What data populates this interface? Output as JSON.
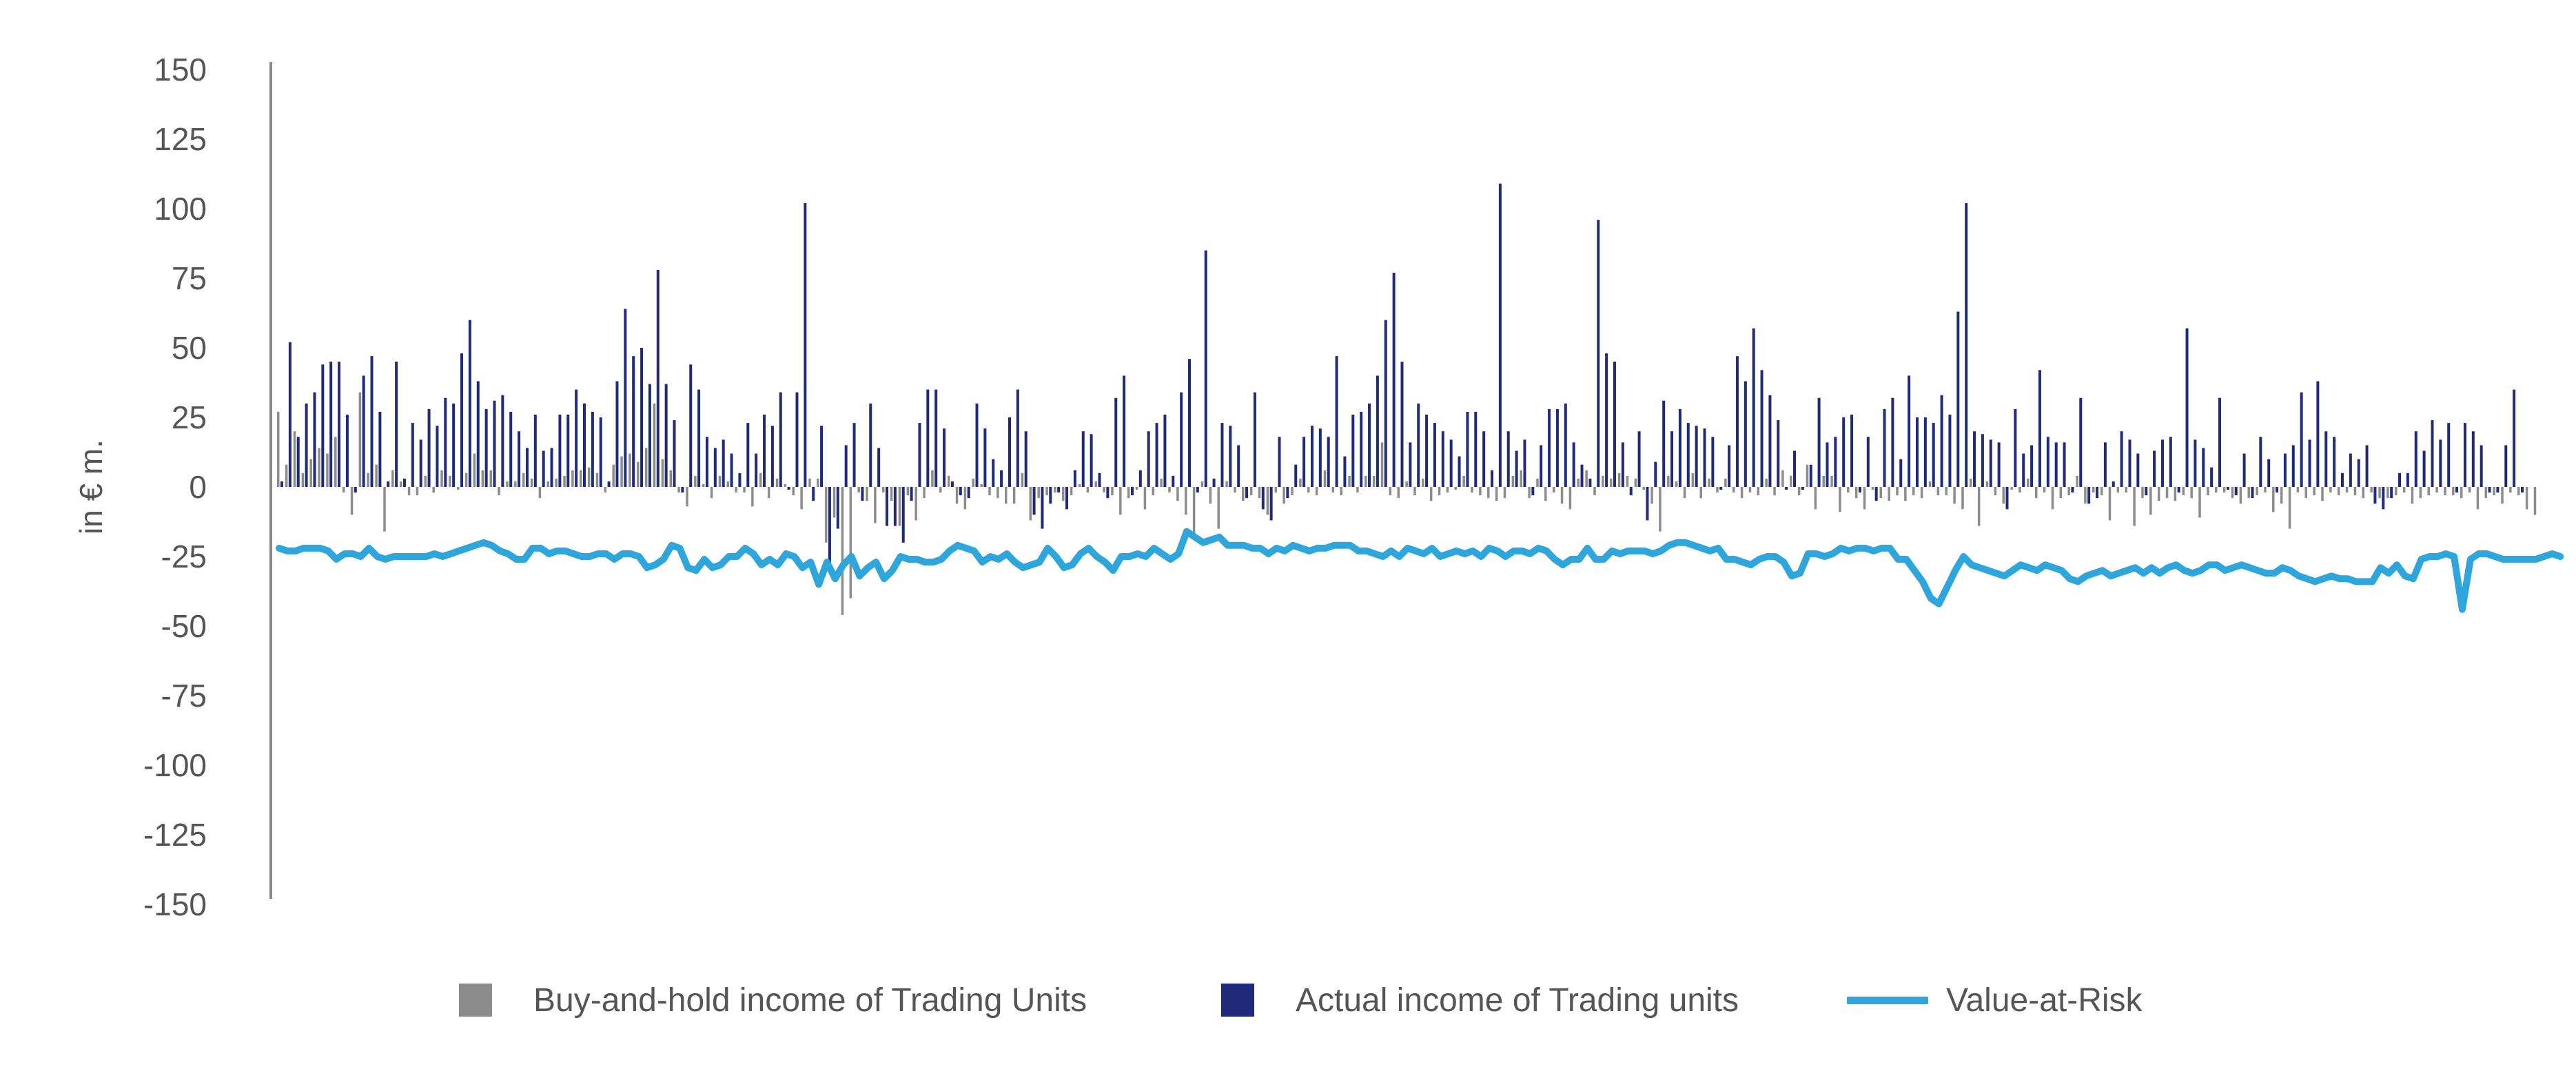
{
  "colors": {
    "buy_and_hold": "#8c8c8c",
    "actual": "#1f2a7a",
    "var_line": "#2ea6dc",
    "axis": "#8a8a8a",
    "text": "#555555"
  },
  "legend": {
    "buy_and_hold_label": "Buy-and-hold income of Trading Units",
    "actual_label": "Actual income of Trading units",
    "var_label": "Value-at-Risk"
  },
  "chart_data": {
    "type": "bar",
    "title": "",
    "xlabel": "",
    "ylabel": "in € m.",
    "ylim": [
      -150,
      150
    ],
    "y_ticks": [
      "150",
      "125",
      "100",
      "75",
      "50",
      "25",
      "0",
      "-25",
      "-50",
      "-75",
      "-100",
      "-125",
      "-150"
    ],
    "x_axis_labels": "none",
    "grid": false,
    "legend_position": "bottom",
    "series": [
      {
        "name": "Actual income of Trading units",
        "kind": "bar",
        "values": [
          2,
          52,
          18,
          30,
          34,
          44,
          45,
          45,
          26,
          -2,
          40,
          47,
          27,
          2,
          45,
          3,
          23,
          17,
          28,
          22,
          32,
          30,
          48,
          60,
          38,
          28,
          31,
          33,
          27,
          20,
          14,
          26,
          13,
          14,
          26,
          26,
          35,
          30,
          27,
          25,
          2,
          38,
          64,
          47,
          50,
          37,
          78,
          37,
          24,
          -2,
          44,
          35,
          18,
          14,
          17,
          12,
          5,
          23,
          12,
          26,
          22,
          34,
          -1,
          34,
          102,
          -5,
          22,
          -30,
          -15,
          15,
          23,
          -5,
          30,
          14,
          -14,
          -14,
          -20,
          -5,
          23,
          35,
          35,
          21,
          2,
          -3,
          -4,
          30,
          21,
          10,
          6,
          25,
          35,
          20,
          -10,
          -15,
          -6,
          -2,
          -8,
          6,
          20,
          19,
          5,
          -4,
          32,
          40,
          -3,
          6,
          20,
          23,
          26,
          4,
          34,
          46,
          -2,
          85,
          3,
          23,
          22,
          15,
          -4,
          34,
          -8,
          -12,
          18,
          -4,
          8,
          18,
          22,
          21,
          18,
          47,
          11,
          26,
          27,
          30,
          40,
          60,
          77,
          45,
          16,
          30,
          26,
          23,
          20,
          17,
          11,
          27,
          27,
          20,
          6,
          109,
          20,
          13,
          17,
          -3,
          15,
          28,
          28,
          30,
          16,
          8,
          3,
          96,
          48,
          45,
          16,
          -3,
          20,
          -12,
          9,
          31,
          20,
          28,
          23,
          22,
          21,
          18,
          -1,
          15,
          47,
          38,
          57,
          42,
          33,
          24,
          -1,
          13,
          -1,
          8,
          32,
          16,
          18,
          25,
          26,
          -2,
          18,
          -5,
          28,
          32,
          10,
          40,
          25,
          25,
          23,
          33,
          26,
          63,
          102,
          20,
          19,
          17,
          16,
          -8,
          28,
          12,
          15,
          42,
          18,
          16,
          16,
          -2,
          32,
          -6,
          -4,
          16,
          2,
          20,
          17,
          12,
          -3,
          13,
          17,
          18,
          -2,
          57,
          17,
          14,
          7,
          32,
          -1,
          -3,
          12,
          -4,
          18,
          10,
          -2,
          12,
          15,
          34,
          17,
          38,
          20,
          18,
          5,
          12,
          10,
          15,
          -6,
          -8,
          -4,
          5,
          5,
          20,
          13,
          24,
          17,
          23,
          -2,
          23,
          20,
          15,
          -2,
          -2,
          15,
          35,
          -2
        ],
        "color": "#1f2a7a"
      },
      {
        "name": "Buy-and-hold income of Trading Units",
        "kind": "bar",
        "values": [
          27,
          8,
          20,
          5,
          10,
          14,
          12,
          18,
          -2,
          -10,
          34,
          5,
          8,
          -16,
          6,
          2,
          -3,
          -3,
          4,
          -2,
          6,
          4,
          -1,
          5,
          12,
          6,
          6,
          -3,
          2,
          2,
          5,
          3,
          -4,
          2,
          3,
          4,
          6,
          6,
          7,
          5,
          -2,
          8,
          11,
          12,
          9,
          14,
          30,
          10,
          6,
          -2,
          -7,
          4,
          1,
          -4,
          4,
          2,
          -2,
          -2,
          -7,
          5,
          -4,
          3,
          1,
          -3,
          -8,
          3,
          3,
          -20,
          -11,
          -46,
          -40,
          -2,
          -5,
          -13,
          -2,
          -5,
          -14,
          -3,
          -12,
          -4,
          6,
          -2,
          4,
          -6,
          -8,
          3,
          1,
          -3,
          -4,
          -6,
          -6,
          5,
          -12,
          -4,
          -3,
          -2,
          -5,
          -3,
          1,
          -2,
          2,
          -2,
          -3,
          -10,
          -4,
          -1,
          -8,
          -3,
          3,
          -2,
          -5,
          -10,
          -19,
          2,
          -6,
          -15,
          2,
          -2,
          -5,
          -3,
          -4,
          -10,
          -2,
          -6,
          -3,
          3,
          -2,
          -3,
          6,
          -2,
          -3,
          4,
          -2,
          4,
          4,
          16,
          -3,
          -4,
          2,
          -3,
          3,
          -5,
          -3,
          -2,
          -1,
          4,
          -2,
          -3,
          -4,
          -5,
          -4,
          4,
          6,
          -4,
          3,
          -5,
          -2,
          -6,
          -8,
          3,
          6,
          -3,
          4,
          3,
          5,
          4,
          3,
          -1,
          -6,
          -16,
          4,
          2,
          -4,
          5,
          -4,
          3,
          -2,
          3,
          -2,
          -4,
          -2,
          -3,
          3,
          -3,
          6,
          4,
          -3,
          8,
          -8,
          4,
          4,
          -9,
          -2,
          -4,
          -8,
          -1,
          -4,
          -5,
          -3,
          -5,
          -3,
          -4,
          2,
          -3,
          -3,
          -6,
          -8,
          3,
          -14,
          2,
          -3,
          -6,
          -1,
          -2,
          3,
          -4,
          -2,
          -8,
          -4,
          -3,
          4,
          -6,
          -2,
          -3,
          -12,
          -2,
          -2,
          -14,
          -4,
          -10,
          -5,
          -4,
          -5,
          -3,
          -4,
          -11,
          -3,
          -2,
          -2,
          -4,
          -6,
          -4,
          -3,
          -2,
          -9,
          -6,
          -15,
          -2,
          -4,
          -3,
          -5,
          -2,
          -3,
          -2,
          -3,
          -4,
          -2,
          -4,
          -4,
          -3,
          -2,
          -6,
          -4,
          -3,
          -2,
          -3,
          -3,
          -4,
          -2,
          -8,
          -4,
          -3,
          -6,
          -2,
          -3,
          -8,
          -10
        ],
        "color": "#8c8c8c"
      },
      {
        "name": "Value-at-Risk",
        "kind": "line",
        "values": [
          -22,
          -23,
          -23,
          -22,
          -22,
          -22,
          -23,
          -26,
          -24,
          -24,
          -25,
          -22,
          -25,
          -26,
          -25,
          -25,
          -25,
          -25,
          -25,
          -24,
          -25,
          -24,
          -23,
          -22,
          -21,
          -20,
          -21,
          -23,
          -24,
          -26,
          -26,
          -22,
          -22,
          -24,
          -23,
          -23,
          -24,
          -25,
          -25,
          -24,
          -24,
          -26,
          -24,
          -24,
          -25,
          -29,
          -28,
          -26,
          -21,
          -22,
          -29,
          -30,
          -26,
          -29,
          -28,
          -25,
          -25,
          -22,
          -24,
          -28,
          -26,
          -28,
          -24,
          -25,
          -29,
          -27,
          -35,
          -27,
          -33,
          -28,
          -25,
          -32,
          -29,
          -27,
          -33,
          -30,
          -25,
          -26,
          -26,
          -27,
          -27,
          -26,
          -23,
          -21,
          -22,
          -23,
          -27,
          -25,
          -26,
          -24,
          -27,
          -29,
          -28,
          -27,
          -22,
          -25,
          -29,
          -28,
          -24,
          -22,
          -25,
          -27,
          -30,
          -25,
          -25,
          -24,
          -25,
          -22,
          -24,
          -26,
          -24,
          -16,
          -18,
          -20,
          -19,
          -18,
          -21,
          -21,
          -21,
          -22,
          -22,
          -24,
          -22,
          -23,
          -21,
          -22,
          -23,
          -22,
          -22,
          -21,
          -21,
          -21,
          -23,
          -23,
          -24,
          -25,
          -23,
          -25,
          -22,
          -23,
          -24,
          -22,
          -25,
          -24,
          -23,
          -24,
          -23,
          -25,
          -22,
          -23,
          -25,
          -23,
          -23,
          -24,
          -22,
          -23,
          -26,
          -28,
          -26,
          -26,
          -22,
          -26,
          -26,
          -23,
          -24,
          -23,
          -23,
          -23,
          -24,
          -23,
          -21,
          -20,
          -20,
          -21,
          -22,
          -23,
          -22,
          -26,
          -26,
          -27,
          -28,
          -26,
          -25,
          -25,
          -27,
          -32,
          -31,
          -24,
          -24,
          -25,
          -24,
          -22,
          -23,
          -22,
          -22,
          -23,
          -22,
          -22,
          -26,
          -26,
          -30,
          -34,
          -40,
          -42,
          -36,
          -30,
          -25,
          -28,
          -29,
          -30,
          -31,
          -32,
          -30,
          -28,
          -29,
          -30,
          -28,
          -29,
          -30,
          -33,
          -34,
          -32,
          -31,
          -30,
          -32,
          -31,
          -30,
          -29,
          -31,
          -29,
          -31,
          -29,
          -28,
          -30,
          -31,
          -30,
          -28,
          -28,
          -30,
          -29,
          -28,
          -29,
          -30,
          -31,
          -31,
          -29,
          -30,
          -32,
          -33,
          -34,
          -33,
          -32,
          -33,
          -33,
          -34,
          -34,
          -34,
          -29,
          -31,
          -28,
          -32,
          -33,
          -26,
          -25,
          -25,
          -24,
          -25,
          -44,
          -26,
          -24,
          -24,
          -25,
          -26,
          -26,
          -26,
          -26,
          -26,
          -25,
          -24,
          -25
        ],
        "color": "#2ea6dc"
      }
    ]
  }
}
